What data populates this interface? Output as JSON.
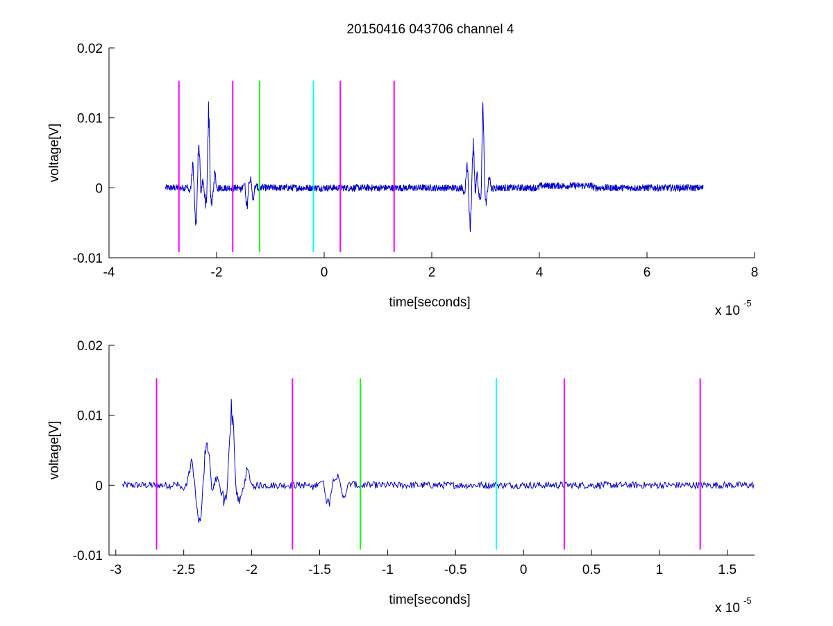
{
  "title": "20150416 043706 channel 4",
  "colors": {
    "signal": "#0000cc",
    "magenta": "#ff00ff",
    "green": "#00ff00",
    "cyan": "#00ffff",
    "axis": "#000000"
  },
  "chart_data": [
    {
      "type": "line",
      "title": "20150416 043706 channel 4",
      "xlabel": "time[seconds]",
      "ylabel": "voltage[V]",
      "x_exponent_label": "x 10",
      "x_exponent": "-5",
      "xlim": [
        -4e-05,
        8e-05
      ],
      "ylim": [
        -0.01,
        0.02
      ],
      "xticks": [
        -4e-05,
        -2e-05,
        0,
        2e-05,
        4e-05,
        6e-05,
        8e-05
      ],
      "xtick_labels": [
        "-4",
        "-2",
        "0",
        "2",
        "4",
        "6",
        "8"
      ],
      "yticks": [
        -0.01,
        0,
        0.01,
        0.02
      ],
      "ytick_labels": [
        "-0.01",
        "0",
        "0.01",
        "0.02"
      ],
      "grid": false,
      "series": [
        {
          "color": "#0000cc",
          "x_range": [
            -2.95e-05,
            7.05e-05
          ],
          "bursts": [
            {
              "center": -2.35e-05,
              "peak": 0.0087,
              "trough": -0.0082
            },
            {
              "center": -2.17e-05,
              "peak": 0.0138,
              "trough": -0.0049
            },
            {
              "center": -1.4e-05,
              "peak": 0.0018,
              "trough": -0.0033
            },
            {
              "center": 2.75e-05,
              "peak": 0.0082,
              "trough": -0.0082
            },
            {
              "center": 2.93e-05,
              "peak": 0.0136,
              "trough": -0.0045
            }
          ]
        }
      ],
      "markers": [
        {
          "x": -2.7e-05,
          "color": "#ff00ff",
          "y_range": [
            -0.0092,
            0.0153
          ]
        },
        {
          "x": -1.7e-05,
          "color": "#ff00ff",
          "y_range": [
            -0.0092,
            0.0153
          ]
        },
        {
          "x": -1.2e-05,
          "color": "#00ff00",
          "y_range": [
            -0.0092,
            0.0153
          ]
        },
        {
          "x": -2e-06,
          "color": "#00ffff",
          "y_range": [
            -0.0092,
            0.0153
          ]
        },
        {
          "x": 3e-06,
          "color": "#ff00ff",
          "y_range": [
            -0.0092,
            0.0153
          ]
        },
        {
          "x": 1.3e-05,
          "color": "#ff00ff",
          "y_range": [
            -0.0092,
            0.0153
          ]
        }
      ]
    },
    {
      "type": "line",
      "title": "",
      "xlabel": "time[seconds]",
      "ylabel": "voltage[V]",
      "x_exponent_label": "x 10",
      "x_exponent": "-5",
      "xlim": [
        -3.05e-05,
        1.7e-05
      ],
      "ylim": [
        -0.01,
        0.02
      ],
      "xticks": [
        -3e-05,
        -2.5e-05,
        -2e-05,
        -1.5e-05,
        -1e-05,
        -5e-06,
        0,
        5e-06,
        1e-05,
        1.5e-05
      ],
      "xtick_labels": [
        "-3",
        "-2.5",
        "-2",
        "-1.5",
        "-1",
        "-0.5",
        "0",
        "0.5",
        "1",
        "1.5"
      ],
      "yticks": [
        -0.01,
        0,
        0.01,
        0.02
      ],
      "ytick_labels": [
        "-0.01",
        "0",
        "0.01",
        "0.02"
      ],
      "grid": false,
      "series": [
        {
          "color": "#0000cc",
          "x_range": [
            -2.95e-05,
            1.7e-05
          ],
          "bursts": [
            {
              "center": -2.35e-05,
              "peak": 0.0087,
              "trough": -0.0082
            },
            {
              "center": -2.17e-05,
              "peak": 0.0138,
              "trough": -0.0049
            },
            {
              "center": -1.4e-05,
              "peak": 0.0018,
              "trough": -0.0033
            }
          ]
        }
      ],
      "markers": [
        {
          "x": -2.7e-05,
          "color": "#ff00ff",
          "y_range": [
            -0.0092,
            0.0153
          ]
        },
        {
          "x": -1.7e-05,
          "color": "#ff00ff",
          "y_range": [
            -0.0092,
            0.0153
          ]
        },
        {
          "x": -1.2e-05,
          "color": "#00ff00",
          "y_range": [
            -0.0092,
            0.0153
          ]
        },
        {
          "x": -2e-06,
          "color": "#00ffff",
          "y_range": [
            -0.0092,
            0.0153
          ]
        },
        {
          "x": 3e-06,
          "color": "#ff00ff",
          "y_range": [
            -0.0092,
            0.0153
          ]
        },
        {
          "x": 1.3e-05,
          "color": "#ff00ff",
          "y_range": [
            -0.0092,
            0.0153
          ]
        }
      ]
    }
  ]
}
